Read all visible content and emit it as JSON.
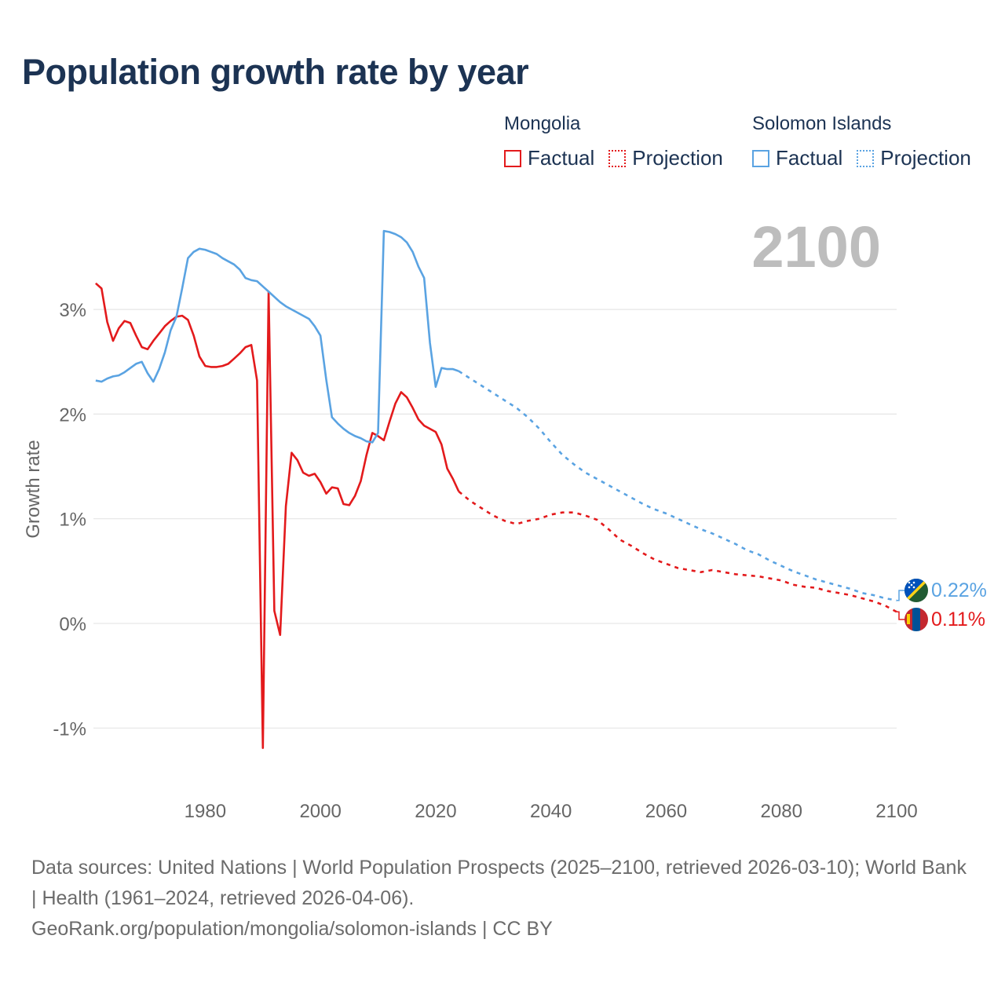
{
  "title": "Population growth rate by year",
  "year_display": "2100",
  "legend": {
    "groups": [
      {
        "name": "Mongolia",
        "color": "#e31a1c",
        "factual_label": "Factual",
        "projection_label": "Projection"
      },
      {
        "name": "Solomon Islands",
        "color": "#5aa3e2",
        "factual_label": "Factual",
        "projection_label": "Projection"
      }
    ]
  },
  "footer": {
    "sources": "Data sources: United Nations | World Population Prospects (2025–2100, retrieved 2026-03-10); World Bank | Health (1961–2024, retrieved 2026-04-06).",
    "credit": "GeoRank.org/population/mongolia/solomon-islands | CC BY"
  },
  "chart_data": {
    "type": "line",
    "title": "Population growth rate by year",
    "xlabel": "",
    "ylabel": "Growth rate",
    "xlim": [
      1961,
      2100
    ],
    "ylim": [
      -1.5,
      3.75
    ],
    "x_ticks": [
      1980,
      2000,
      2020,
      2040,
      2060,
      2080,
      2100
    ],
    "y_ticks": [
      -1,
      0,
      1,
      2,
      3
    ],
    "y_tick_labels": [
      "-1%",
      "0%",
      "1%",
      "2%",
      "3%"
    ],
    "grid": true,
    "end_labels": [
      {
        "series": "Solomon Islands",
        "text": "0.22%",
        "flag": "solomon-islands-flag-icon"
      },
      {
        "series": "Mongolia",
        "text": "0.11%",
        "flag": "mongolia-flag-icon"
      }
    ],
    "series": [
      {
        "name": "Mongolia",
        "color": "#e31a1c",
        "factual": {
          "x": [
            1961,
            1962,
            1963,
            1964,
            1965,
            1966,
            1967,
            1968,
            1969,
            1970,
            1971,
            1972,
            1973,
            1974,
            1975,
            1976,
            1977,
            1978,
            1979,
            1980,
            1981,
            1982,
            1983,
            1984,
            1985,
            1986,
            1987,
            1988,
            1989,
            1990,
            1991,
            1992,
            1993,
            1994,
            1995,
            1996,
            1997,
            1998,
            1999,
            2000,
            2001,
            2002,
            2003,
            2004,
            2005,
            2006,
            2007,
            2008,
            2009,
            2010,
            2011,
            2012,
            2013,
            2014,
            2015,
            2016,
            2017,
            2018,
            2019,
            2020,
            2021,
            2022,
            2023,
            2024
          ],
          "y": [
            3.25,
            3.2,
            2.88,
            2.7,
            2.82,
            2.89,
            2.87,
            2.75,
            2.64,
            2.62,
            2.7,
            2.77,
            2.84,
            2.89,
            2.93,
            2.94,
            2.9,
            2.75,
            2.55,
            2.46,
            2.45,
            2.45,
            2.46,
            2.48,
            2.53,
            2.58,
            2.64,
            2.66,
            2.32,
            -1.19,
            3.17,
            0.12,
            -0.11,
            1.12,
            1.63,
            1.56,
            1.44,
            1.41,
            1.43,
            1.35,
            1.24,
            1.3,
            1.29,
            1.14,
            1.13,
            1.22,
            1.36,
            1.61,
            1.82,
            1.79,
            1.75,
            1.93,
            2.1,
            2.21,
            2.16,
            2.06,
            1.95,
            1.89,
            1.86,
            1.83,
            1.71,
            1.48,
            1.38,
            1.26
          ]
        },
        "projection": {
          "x": [
            2024,
            2026,
            2028,
            2030,
            2032,
            2034,
            2036,
            2038,
            2040,
            2042,
            2044,
            2046,
            2048,
            2050,
            2052,
            2054,
            2056,
            2058,
            2060,
            2062,
            2064,
            2066,
            2068,
            2070,
            2072,
            2074,
            2076,
            2078,
            2080,
            2082,
            2084,
            2086,
            2088,
            2090,
            2092,
            2094,
            2096,
            2098,
            2100
          ],
          "y": [
            1.26,
            1.17,
            1.1,
            1.03,
            0.98,
            0.95,
            0.98,
            1.0,
            1.04,
            1.06,
            1.06,
            1.03,
            0.99,
            0.9,
            0.8,
            0.74,
            0.67,
            0.61,
            0.57,
            0.53,
            0.51,
            0.49,
            0.51,
            0.49,
            0.47,
            0.46,
            0.45,
            0.43,
            0.41,
            0.37,
            0.35,
            0.34,
            0.31,
            0.29,
            0.27,
            0.24,
            0.21,
            0.17,
            0.11
          ]
        }
      },
      {
        "name": "Solomon Islands",
        "color": "#5aa3e2",
        "factual": {
          "x": [
            1961,
            1962,
            1963,
            1964,
            1965,
            1966,
            1967,
            1968,
            1969,
            1970,
            1971,
            1972,
            1973,
            1974,
            1975,
            1976,
            1977,
            1978,
            1979,
            1980,
            1981,
            1982,
            1983,
            1984,
            1985,
            1986,
            1987,
            1988,
            1989,
            1990,
            1991,
            1992,
            1993,
            1994,
            1995,
            1996,
            1997,
            1998,
            1999,
            2000,
            2001,
            2002,
            2003,
            2004,
            2005,
            2006,
            2007,
            2008,
            2009,
            2010,
            2011,
            2012,
            2013,
            2014,
            2015,
            2016,
            2017,
            2018,
            2019,
            2020,
            2021,
            2022,
            2023,
            2024
          ],
          "y": [
            2.32,
            2.31,
            2.34,
            2.36,
            2.37,
            2.4,
            2.44,
            2.48,
            2.5,
            2.39,
            2.31,
            2.43,
            2.59,
            2.8,
            2.93,
            3.2,
            3.49,
            3.55,
            3.58,
            3.57,
            3.55,
            3.53,
            3.49,
            3.46,
            3.43,
            3.38,
            3.3,
            3.28,
            3.27,
            3.22,
            3.17,
            3.12,
            3.07,
            3.03,
            3.0,
            2.97,
            2.94,
            2.91,
            2.84,
            2.75,
            2.33,
            1.97,
            1.91,
            1.86,
            1.82,
            1.79,
            1.77,
            1.74,
            1.73,
            1.82,
            3.75,
            3.74,
            3.72,
            3.69,
            3.64,
            3.55,
            3.41,
            3.3,
            2.68,
            2.26,
            2.44,
            2.43,
            2.43,
            2.41
          ]
        },
        "projection": {
          "x": [
            2024,
            2026,
            2028,
            2030,
            2032,
            2034,
            2036,
            2038,
            2040,
            2042,
            2044,
            2046,
            2048,
            2050,
            2052,
            2054,
            2056,
            2058,
            2060,
            2062,
            2064,
            2066,
            2068,
            2070,
            2072,
            2074,
            2076,
            2078,
            2080,
            2082,
            2084,
            2086,
            2088,
            2090,
            2092,
            2094,
            2096,
            2098,
            2100
          ],
          "y": [
            2.41,
            2.34,
            2.27,
            2.2,
            2.13,
            2.06,
            1.97,
            1.86,
            1.73,
            1.61,
            1.52,
            1.44,
            1.38,
            1.32,
            1.26,
            1.2,
            1.14,
            1.09,
            1.05,
            1.0,
            0.95,
            0.9,
            0.86,
            0.81,
            0.76,
            0.7,
            0.66,
            0.6,
            0.55,
            0.5,
            0.46,
            0.42,
            0.39,
            0.36,
            0.33,
            0.29,
            0.27,
            0.24,
            0.22
          ]
        }
      }
    ]
  }
}
